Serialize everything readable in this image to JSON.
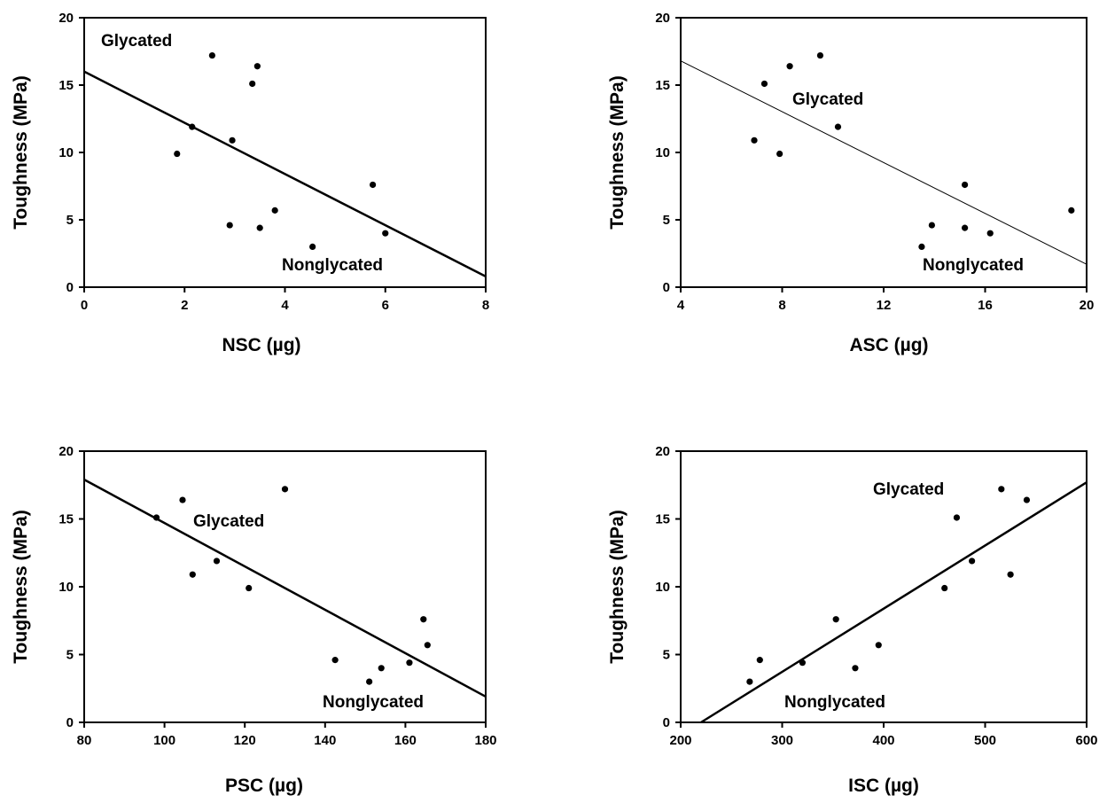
{
  "chart_data": [
    {
      "type": "scatter",
      "xlabel": "NSC (µg)",
      "ylabel": "Toughness (MPa)",
      "xlim": [
        0,
        8
      ],
      "ylim": [
        0,
        20
      ],
      "xticks": [
        "0",
        "2",
        "4",
        "6",
        "8"
      ],
      "yticks": [
        "0",
        "5",
        "10",
        "15",
        "20"
      ],
      "annotations": [
        {
          "text": "Glycated"
        },
        {
          "text": "Nonglycated"
        }
      ],
      "points": [
        {
          "x": 1.85,
          "y": 9.9
        },
        {
          "x": 2.15,
          "y": 11.9
        },
        {
          "x": 2.55,
          "y": 17.2
        },
        {
          "x": 2.9,
          "y": 4.6
        },
        {
          "x": 2.95,
          "y": 10.9
        },
        {
          "x": 3.35,
          "y": 15.1
        },
        {
          "x": 3.45,
          "y": 16.4
        },
        {
          "x": 3.5,
          "y": 4.4
        },
        {
          "x": 3.8,
          "y": 5.7
        },
        {
          "x": 4.55,
          "y": 3.0
        },
        {
          "x": 5.75,
          "y": 7.6
        },
        {
          "x": 6.0,
          "y": 4.0
        }
      ],
      "fit_line": [
        {
          "x": 0,
          "y": 16.0
        },
        {
          "x": 8,
          "y": 0.8
        }
      ],
      "grid": false
    },
    {
      "type": "scatter",
      "xlabel": "ASC (µg)",
      "ylabel": "Toughness (MPa)",
      "xlim": [
        4,
        20
      ],
      "ylim": [
        0,
        20
      ],
      "xticks": [
        "4",
        "8",
        "12",
        "16",
        "20"
      ],
      "yticks": [
        "0",
        "5",
        "10",
        "15",
        "20"
      ],
      "annotations": [
        {
          "text": "Glycated"
        },
        {
          "text": "Nonglycated"
        }
      ],
      "points": [
        {
          "x": 6.9,
          "y": 10.9
        },
        {
          "x": 7.3,
          "y": 15.1
        },
        {
          "x": 7.9,
          "y": 9.9
        },
        {
          "x": 8.3,
          "y": 16.4
        },
        {
          "x": 9.5,
          "y": 17.2
        },
        {
          "x": 10.2,
          "y": 11.9
        },
        {
          "x": 13.5,
          "y": 3.0
        },
        {
          "x": 13.9,
          "y": 4.6
        },
        {
          "x": 15.2,
          "y": 7.6
        },
        {
          "x": 15.2,
          "y": 4.4
        },
        {
          "x": 16.2,
          "y": 4.0
        },
        {
          "x": 19.4,
          "y": 5.7
        }
      ],
      "fit_line": [
        {
          "x": 4,
          "y": 16.8
        },
        {
          "x": 20,
          "y": 1.7
        }
      ],
      "grid": false
    },
    {
      "type": "scatter",
      "xlabel": "PSC (µg)",
      "ylabel": "Toughness (MPa)",
      "xlim": [
        80,
        180
      ],
      "ylim": [
        0,
        20
      ],
      "xticks": [
        "80",
        "100",
        "120",
        "140",
        "160",
        "180"
      ],
      "yticks": [
        "0",
        "5",
        "10",
        "15",
        "20"
      ],
      "annotations": [
        {
          "text": "Glycated"
        },
        {
          "text": "Nonglycated"
        }
      ],
      "points": [
        {
          "x": 98,
          "y": 15.1
        },
        {
          "x": 104.5,
          "y": 16.4
        },
        {
          "x": 107,
          "y": 10.9
        },
        {
          "x": 113,
          "y": 11.9
        },
        {
          "x": 121,
          "y": 9.9
        },
        {
          "x": 130,
          "y": 17.2
        },
        {
          "x": 142.5,
          "y": 4.6
        },
        {
          "x": 151,
          "y": 3.0
        },
        {
          "x": 154,
          "y": 4.0
        },
        {
          "x": 161,
          "y": 4.4
        },
        {
          "x": 164.5,
          "y": 7.6
        },
        {
          "x": 165.5,
          "y": 5.7
        }
      ],
      "fit_line": [
        {
          "x": 80,
          "y": 17.9
        },
        {
          "x": 180,
          "y": 1.9
        }
      ],
      "grid": false
    },
    {
      "type": "scatter",
      "xlabel": "ISC (µg)",
      "ylabel": "Toughness (MPa)",
      "xlim": [
        200,
        600
      ],
      "ylim": [
        0,
        20
      ],
      "xticks": [
        "200",
        "300",
        "400",
        "500",
        "600"
      ],
      "yticks": [
        "0",
        "5",
        "10",
        "15",
        "20"
      ],
      "annotations": [
        {
          "text": "Glycated"
        },
        {
          "text": "Nonglycated"
        }
      ],
      "points": [
        {
          "x": 268,
          "y": 3.0
        },
        {
          "x": 278,
          "y": 4.6
        },
        {
          "x": 320,
          "y": 4.4
        },
        {
          "x": 353,
          "y": 7.6
        },
        {
          "x": 372,
          "y": 4.0
        },
        {
          "x": 395,
          "y": 5.7
        },
        {
          "x": 460,
          "y": 9.9
        },
        {
          "x": 472,
          "y": 15.1
        },
        {
          "x": 487,
          "y": 11.9
        },
        {
          "x": 516,
          "y": 17.2
        },
        {
          "x": 525,
          "y": 10.9
        },
        {
          "x": 541,
          "y": 16.4
        }
      ],
      "fit_line": [
        {
          "x": 220,
          "y": 0
        },
        {
          "x": 600,
          "y": 17.7
        }
      ],
      "grid": false
    }
  ]
}
